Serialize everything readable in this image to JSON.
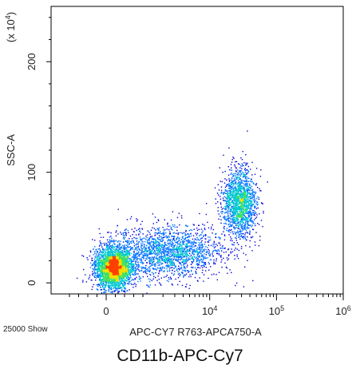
{
  "caption": "CD11b-APC-Cy7",
  "chart_data": {
    "type": "scatter",
    "subtype": "flow-cytometry density dot plot",
    "xlabel": "APC-CY7 R763-APCA750-A",
    "ylabel": "SSC-A",
    "y_multiplier": "(x 10^4)",
    "event_count_label": "25000 Show",
    "x_scale": "biexponential (linear near 0, log above 10^3)",
    "xlim": [
      -1500,
      1000000
    ],
    "ylim": [
      -10,
      250
    ],
    "x_ticks": [
      {
        "value": 0,
        "base": "0",
        "exp": ""
      },
      {
        "value": 10000,
        "base": "10",
        "exp": "4"
      },
      {
        "value": 100000,
        "base": "10",
        "exp": "5"
      },
      {
        "value": 1000000,
        "base": "10",
        "exp": "6"
      }
    ],
    "y_ticks": [
      {
        "value": 0,
        "label": "0"
      },
      {
        "value": 100,
        "label": "100"
      },
      {
        "value": 200,
        "label": "200"
      }
    ],
    "populations": [
      {
        "name": "",
        "x_center": 200,
        "y_center": 14,
        "x_spread": 400,
        "y_spread": 10,
        "events": 3200
      },
      {
        "name": "",
        "x_center": 2500,
        "y_center": 28,
        "x_spread": 2500,
        "y_spread": 12,
        "events": 1800
      },
      {
        "name": "",
        "x_center": 28000,
        "y_center": 73,
        "x_spread": 12000,
        "y_spread": 16,
        "events": 1600
      }
    ],
    "color_scale": [
      "#0000d8",
      "#0070ff",
      "#00c8d0",
      "#40e060",
      "#f0e000",
      "#ff4000"
    ],
    "grid": false,
    "legend": "none"
  }
}
